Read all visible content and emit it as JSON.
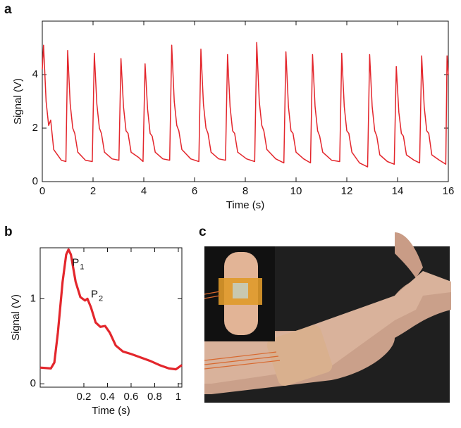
{
  "panel_labels": [
    "a",
    "b",
    "c"
  ],
  "chart_data": [
    {
      "type": "line",
      "xlabel": "Time (s)",
      "ylabel": "Signal (V)",
      "xlim": [
        0,
        16
      ],
      "ylim": [
        0,
        6
      ],
      "xticks": [
        0,
        2,
        4,
        6,
        8,
        10,
        12,
        14,
        16
      ],
      "yticks": [
        0,
        2,
        4
      ],
      "series": [
        {
          "color": "#e3262c",
          "x": [
            0,
            0.05,
            0.15,
            0.25,
            0.33,
            0.45,
            0.75,
            0.93,
            1.0,
            1.1,
            1.2,
            1.28,
            1.4,
            1.7,
            1.97,
            2.05,
            2.15,
            2.25,
            2.33,
            2.45,
            2.75,
            3.02,
            3.1,
            3.2,
            3.3,
            3.38,
            3.5,
            3.8,
            3.97,
            4.05,
            4.15,
            4.25,
            4.33,
            4.45,
            4.75,
            5.02,
            5.1,
            5.2,
            5.3,
            5.38,
            5.5,
            5.85,
            6.17,
            6.25,
            6.35,
            6.45,
            6.53,
            6.65,
            6.95,
            7.22,
            7.3,
            7.4,
            7.5,
            7.58,
            7.7,
            8.05,
            8.37,
            8.45,
            8.55,
            8.65,
            8.73,
            8.85,
            9.2,
            9.52,
            9.6,
            9.7,
            9.8,
            9.88,
            10.0,
            10.3,
            10.57,
            10.65,
            10.75,
            10.85,
            10.93,
            11.05,
            11.4,
            11.72,
            11.8,
            11.9,
            12.0,
            12.08,
            12.2,
            12.5,
            12.82,
            12.9,
            13.0,
            13.1,
            13.18,
            13.3,
            13.6,
            13.87,
            13.95,
            14.05,
            14.15,
            14.23,
            14.35,
            14.65,
            14.87,
            14.95,
            15.05,
            15.15,
            15.23,
            15.35,
            15.65,
            15.9,
            15.95,
            16.0
          ],
          "values": [
            4.2,
            5.1,
            3.0,
            2.1,
            2.3,
            1.2,
            0.8,
            0.75,
            4.9,
            2.9,
            2.0,
            1.8,
            1.1,
            0.8,
            0.75,
            4.8,
            2.9,
            2.0,
            1.8,
            1.1,
            0.85,
            0.8,
            4.6,
            2.8,
            1.9,
            1.8,
            1.1,
            0.9,
            0.75,
            4.4,
            2.7,
            1.8,
            1.7,
            1.1,
            0.85,
            0.8,
            5.1,
            3.0,
            2.1,
            1.9,
            1.2,
            0.85,
            0.75,
            4.95,
            2.9,
            2.0,
            1.8,
            1.1,
            0.85,
            0.8,
            4.75,
            2.8,
            1.9,
            1.8,
            1.1,
            0.85,
            0.75,
            5.2,
            3.0,
            2.1,
            1.9,
            1.2,
            0.85,
            0.7,
            4.85,
            2.8,
            1.9,
            1.8,
            1.1,
            0.85,
            0.7,
            4.75,
            2.8,
            1.9,
            1.7,
            1.1,
            0.8,
            0.75,
            4.8,
            2.8,
            1.9,
            1.8,
            1.1,
            0.7,
            0.55,
            4.75,
            2.8,
            1.9,
            1.7,
            1.0,
            0.75,
            0.65,
            4.3,
            2.6,
            1.8,
            1.7,
            1.0,
            0.8,
            0.7,
            4.7,
            2.8,
            1.9,
            1.8,
            1.0,
            0.8,
            0.65,
            4.7,
            4.0
          ]
        }
      ]
    },
    {
      "type": "line",
      "xlabel": "Time (s)",
      "ylabel": "Signal (V)",
      "xlim": [
        -0.17,
        1.03
      ],
      "ylim": [
        -0.04,
        1.6
      ],
      "xticks": [
        0.2,
        0.4,
        0.6,
        0.8,
        1
      ],
      "yticks": [
        0,
        1
      ],
      "series": [
        {
          "color": "#e3262c",
          "x": [
            -0.17,
            -0.08,
            -0.05,
            -0.02,
            0.02,
            0.05,
            0.07,
            0.09,
            0.13,
            0.17,
            0.21,
            0.23,
            0.26,
            0.3,
            0.34,
            0.38,
            0.42,
            0.47,
            0.53,
            0.6,
            0.68,
            0.76,
            0.84,
            0.92,
            0.98,
            1.03
          ],
          "values": [
            0.19,
            0.18,
            0.25,
            0.6,
            1.2,
            1.52,
            1.58,
            1.52,
            1.2,
            1.02,
            0.98,
            1.0,
            0.9,
            0.72,
            0.67,
            0.68,
            0.6,
            0.45,
            0.38,
            0.35,
            0.31,
            0.27,
            0.22,
            0.18,
            0.17,
            0.22
          ]
        }
      ],
      "annotations": [
        {
          "text": "P",
          "sub": "1",
          "x": 0.1,
          "y": 1.42
        },
        {
          "text": "P",
          "sub": "2",
          "x": 0.26,
          "y": 1.05
        }
      ]
    }
  ]
}
